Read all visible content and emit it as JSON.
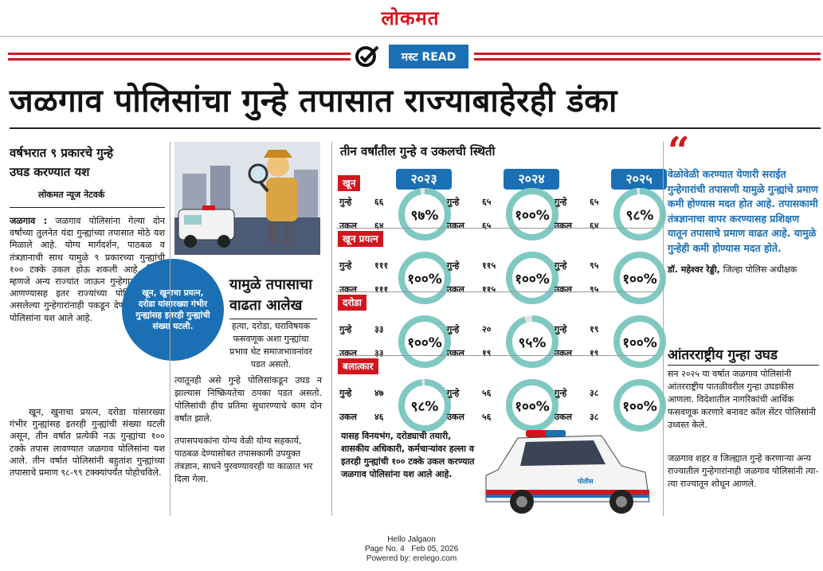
{
  "masthead": {
    "logo": "लोकमत"
  },
  "must_read": {
    "label": "मस्ट READ"
  },
  "headline": "जळगाव पोलिसांचा गुन्हे तपासात राज्याबाहेरही डंका",
  "left": {
    "title_line1": "वर्षभरात ९ प्रकारचे गुन्हे",
    "title_line2": "उघड करण्यात यश",
    "byline": "लोकमत न्यूज नेटवर्क",
    "para1_dateline": "जळगाव :",
    "para1": "जळगाव पोलिसांना गेल्या दोन वर्षांच्या तुलनेत यंदा गुन्ह्यांच्या तपासात मोठे यश मिळाले आहे. योग्य मार्गदर्शन, पाठबळ व तंत्रज्ञानाची साथ यामुळे ९ प्रकारच्या गुन्ह्यांची १०० टक्के उकल होऊ शकली आहे. विशेष म्हणजे अन्य राज्यांत जाऊन गुन्हेगारांना हेरून आणण्यासह इतर राज्यांच्या पोलिसांना हवे असलेल्या गुन्हेगारांनाही पकडून देण्यात जळगाव पोलिसांना यश आले आहे.",
    "para2": "खून, खुनाचा प्रयत्न, दरोडा यांसारख्या गंभीर गुन्ह्यांसह इतरही गुन्ह्यांची संख्या घटली असून, तीन वर्षात प्रत्येकी नऊ गुन्ह्यांचा १०० टक्के तपास लावण्यात जळगाव पोलिसांना यश आले. तीन वर्षात पोलिसांनी बहुतांश गुन्ह्यांच्या तपासाचे प्रमाण ९८-९९ टक्क्यांपर्यंत पोहोचविले."
  },
  "blue_circle": "खून, खुनाचा प्रयत्न, दरोडा यांसारख्या गंभीर गुन्ह्यांसह इतरही गुन्ह्यांची संख्या घटली.",
  "middle": {
    "title_line1": "यामुळे तपासाचा",
    "title_line2": "वाढता आलेख",
    "para1": "हत्या, दरोडा, घराविषयक फसवणूक अशा गुन्ह्यांचा प्रभाव थेट समाजभावनांवर पडत असतो.",
    "para2": "त्यातूनही असे गुन्हे पोलिसांकडून उघड न झाल्यास निष्क्रियतेचा ठपका पडत असतो. पोलिसांची हीच प्रतिमा सुधारण्याचे काम दोन वर्षांत झाले.",
    "para3": "तपासपथकांना योग्य वेळी योग्य सहकार्य, पाठबळ देण्यासोबत तपासकामी उपयुक्त तंत्रज्ञान, साधने पुरवण्यावरही या काळात भर दिला गेला."
  },
  "chart_data": {
    "type": "table",
    "title": "तीन वर्षांतील गुन्हे व उकलची स्थिती",
    "years": [
      "२०२३",
      "२०२४",
      "२०२५"
    ],
    "row_labels": {
      "crime": "गुन्हे",
      "solved": "उकल"
    },
    "categories": [
      {
        "name": "खून",
        "cells": [
          {
            "crime": "६६",
            "solved": "६४",
            "percent": "९७%",
            "value": 97
          },
          {
            "crime": "६५",
            "solved": "६५",
            "percent": "१००%",
            "value": 100
          },
          {
            "crime": "६५",
            "solved": "६४",
            "percent": "९८%",
            "value": 98
          }
        ]
      },
      {
        "name": "खून प्रयत्न",
        "cells": [
          {
            "crime": "१११",
            "solved": "१११",
            "percent": "१००%",
            "value": 100
          },
          {
            "crime": "११५",
            "solved": "११५",
            "percent": "१००%",
            "value": 100
          },
          {
            "crime": "९५",
            "solved": "९५",
            "percent": "१००%",
            "value": 100
          }
        ]
      },
      {
        "name": "दरोडा",
        "cells": [
          {
            "crime": "३३",
            "solved": "३३",
            "percent": "१००%",
            "value": 100
          },
          {
            "crime": "२०",
            "solved": "१९",
            "percent": "९५%",
            "value": 95
          },
          {
            "crime": "१९",
            "solved": "१९",
            "percent": "१००%",
            "value": 100
          }
        ]
      },
      {
        "name": "बलात्कार",
        "cells": [
          {
            "crime": "४७",
            "solved": "४६",
            "percent": "९८%",
            "value": 98
          },
          {
            "crime": "५६",
            "solved": "५६",
            "percent": "१००%",
            "value": 100
          },
          {
            "crime": "३८",
            "solved": "३८",
            "percent": "१००%",
            "value": 100
          }
        ]
      }
    ],
    "ring_color": "#7fc9c2"
  },
  "below_chart": "यासह विनयभंग, दरोड्याची तयारी, शासकीय अधिकारी, कर्मचाऱ्यांवर हल्ला व इतरही गुन्ह्यांची १०० टक्के उकल करण्यात जळगाव पोलिसांना यश आले आहे.",
  "quote": {
    "text": "वेळोवेळी करण्यात येणारी सराईत गुन्हेगारांची तपासणी यामुळे गुन्ह्यांचे प्रमाण कमी होण्यास मदत होत आहे. तपासकामी तंत्रज्ञानाचा वापर करण्यासह प्रशिक्षण यातून तपासाचे प्रमाण वाढत आहे. यामुळे गुन्हेही कमी होण्यास मदत होते.",
    "author": "डॉ. महेश्वर रेड्डी,",
    "designation": "जिल्हा पोलिस अधीक्षक"
  },
  "intl": {
    "title": "आंतरराष्ट्रीय गुन्हा उघड",
    "para1": "सन २०२५ या वर्षात जळगाव पोलिसांनी आंतरराष्ट्रीय पातळीवरील गुन्हा उघडकीस आणला. विदेशातील नागरिकांची आर्थिक फसवणूक करणारे बनावट कॉल सेंटर पोलिसांनी उध्वस्त केले.",
    "para2": "जळगाव शहर व जिल्ह्यात गुन्हे करणाऱ्या अन्य राज्यातील गुन्हेगारांनाही जळगाव पोलिसांनी त्या-त्या राज्यातून शोधून आणले."
  },
  "van_label": "पोलीस",
  "footer": {
    "edition": "Hello Jalgaon",
    "page": "Page No. 4",
    "date": "Feb 05, 2026",
    "powered": "Powered by: erelego.com"
  },
  "colors": {
    "red": "#d2161e",
    "blue": "#1a6fb5",
    "teal": "#7fc9c2"
  }
}
